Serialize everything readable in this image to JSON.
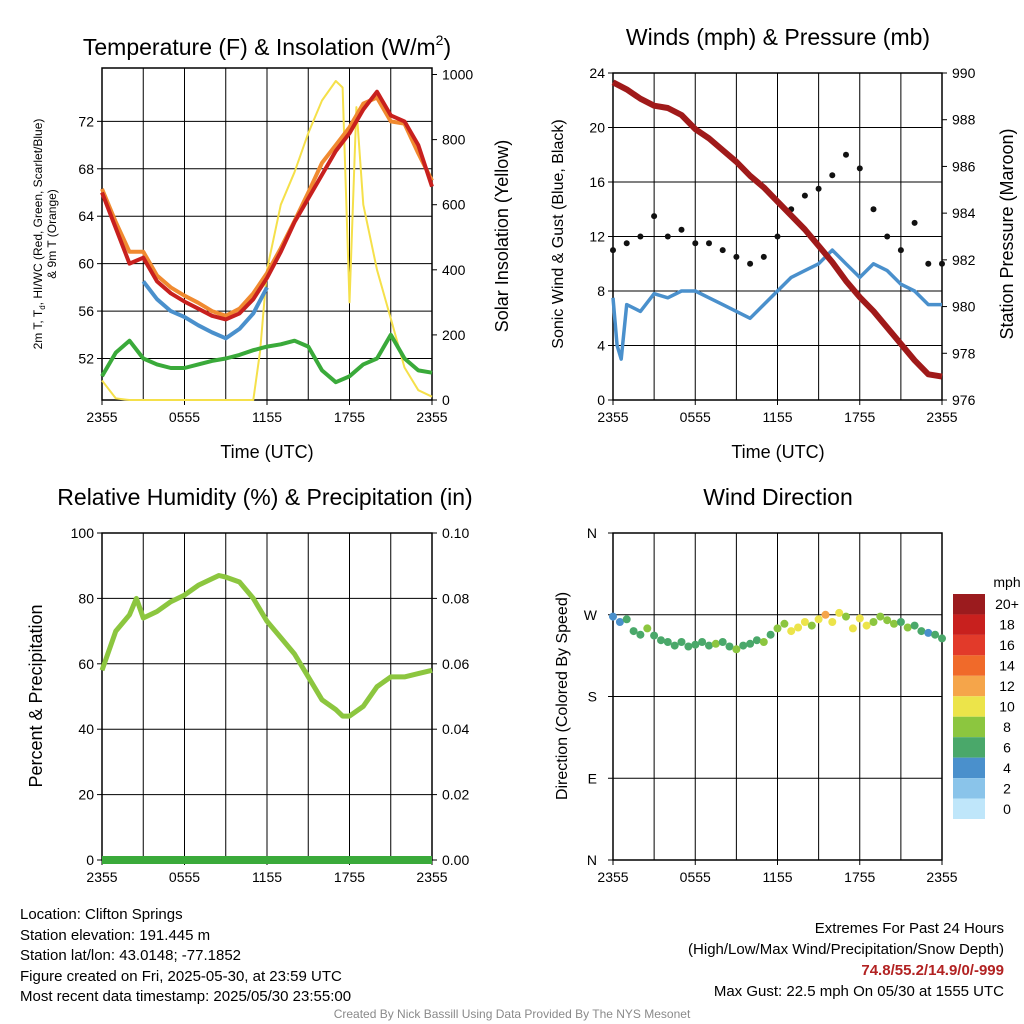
{
  "chart_data": [
    {
      "type": "line",
      "title_main": "Temperature (F) & Insolation (W/m",
      "title_sup": "2",
      "title_close": ")",
      "xlabel": "Time (UTC)",
      "ylabel_line1": "2m T, T",
      "ylabel_sub": "d",
      "ylabel_line1_rest": ", HI/WC (Red, Green, Scarlet/Blue)",
      "ylabel_line2": "& 9m T (Orange)",
      "y2label": "Solar Insolation (Yellow)",
      "ylim": [
        48.5,
        76.5
      ],
      "y2lim": [
        0,
        1020
      ],
      "yticks": [
        "52",
        "56",
        "60",
        "64",
        "68",
        "72"
      ],
      "y2ticks": [
        "0",
        "200",
        "400",
        "600",
        "800",
        "1000"
      ],
      "xticks": [
        "2355",
        "0555",
        "1155",
        "1755",
        "2355"
      ],
      "grid": true,
      "series": [
        {
          "color": "#c8201e",
          "axis": "left",
          "x": [
            0,
            1,
            2,
            3,
            4,
            5,
            6,
            7,
            8,
            9,
            10,
            11,
            12,
            13,
            14,
            15,
            16,
            17,
            18,
            19,
            20,
            21,
            22,
            23,
            24
          ],
          "y": [
            66,
            63,
            60,
            60.5,
            58.5,
            57.5,
            56.8,
            56.2,
            55.6,
            55.3,
            55.8,
            57,
            58.8,
            61,
            63.5,
            65.5,
            67.5,
            69.5,
            71,
            73,
            74.5,
            72.5,
            72,
            70,
            66.5
          ]
        },
        {
          "color": "#f08a30",
          "axis": "left",
          "x": [
            0,
            1,
            2,
            3,
            4,
            5,
            6,
            7,
            8,
            9,
            10,
            11,
            12,
            13,
            14,
            15,
            16,
            17,
            18,
            19,
            20,
            21,
            22,
            23,
            24
          ],
          "y": [
            66.3,
            63.5,
            61,
            61,
            59,
            58,
            57.3,
            56.7,
            56,
            55.6,
            56.2,
            57.5,
            59.2,
            61.3,
            63.6,
            66,
            68.5,
            70,
            71.5,
            73.5,
            74,
            72,
            71.8,
            69.3,
            67
          ]
        },
        {
          "color": "#4a90cc",
          "axis": "left",
          "x": [
            3,
            4,
            5,
            6,
            7,
            8,
            9,
            10,
            11,
            12
          ],
          "y": [
            58.5,
            57,
            56,
            55.5,
            54.8,
            54.2,
            53.7,
            54.5,
            55.8,
            58
          ]
        },
        {
          "color": "#3aaa3a",
          "axis": "left",
          "x": [
            0,
            1,
            2,
            3,
            4,
            5,
            6,
            7,
            8,
            9,
            10,
            11,
            12,
            13,
            14,
            15,
            16,
            17,
            18,
            19,
            20,
            21,
            22,
            23,
            24
          ],
          "y": [
            50.5,
            52.5,
            53.5,
            52,
            51.5,
            51.2,
            51.2,
            51.5,
            51.8,
            52,
            52.3,
            52.7,
            53,
            53.2,
            53.5,
            53,
            51,
            50,
            50.5,
            51.5,
            52,
            54,
            52,
            51,
            50.8
          ]
        },
        {
          "color": "#f5e04a",
          "axis": "right",
          "x": [
            0,
            1,
            2,
            3,
            4,
            5,
            6,
            7,
            8,
            9,
            10,
            11,
            11.5,
            12,
            13,
            14,
            15,
            16,
            17,
            17.5,
            18,
            18.5,
            19,
            20,
            21,
            22,
            23,
            24
          ],
          "y": [
            60,
            5,
            0,
            0,
            0,
            0,
            0,
            0,
            0,
            0,
            0,
            0,
            150,
            400,
            600,
            700,
            820,
            920,
            980,
            960,
            300,
            900,
            600,
            400,
            250,
            100,
            30,
            10
          ]
        }
      ]
    },
    {
      "type": "scatter",
      "title": "Winds (mph) & Pressure (mb)",
      "xlabel": "Time (UTC)",
      "ylabel": "Sonic Wind & Gust (Blue, Black)",
      "y2label": "Station Pressure (Maroon)",
      "ylim": [
        0,
        24
      ],
      "y2lim": [
        976,
        990
      ],
      "yticks": [
        "0",
        "4",
        "8",
        "12",
        "16",
        "20",
        "24"
      ],
      "y2ticks": [
        "976",
        "978",
        "980",
        "982",
        "984",
        "986",
        "988",
        "990"
      ],
      "xticks": [
        "2355",
        "0555",
        "1155",
        "1755",
        "2355"
      ],
      "grid": true,
      "series": [
        {
          "color": "#4a90cc",
          "axis": "left",
          "x": [
            0,
            0.3,
            0.6,
            1,
            2,
            3,
            4,
            5,
            6,
            7,
            8,
            9,
            10,
            11,
            12,
            13,
            14,
            15,
            16,
            17,
            18,
            19,
            20,
            21,
            22,
            23,
            24
          ],
          "y": [
            7.5,
            4,
            3,
            7,
            6.5,
            7.8,
            7.5,
            8,
            8,
            7.5,
            7,
            6.5,
            6,
            7,
            8,
            9,
            9.5,
            10,
            11,
            10,
            9,
            10,
            9.5,
            8.5,
            8,
            7,
            7
          ]
        },
        {
          "color": "#111111",
          "axis": "left",
          "x": [
            0,
            1,
            2,
            3,
            4,
            5,
            6,
            7,
            8,
            9,
            10,
            11,
            12,
            13,
            14,
            15,
            16,
            17,
            18,
            19,
            20,
            21,
            22,
            23,
            24
          ],
          "y": [
            11,
            11.5,
            12,
            13.5,
            12,
            12.5,
            11.5,
            11.5,
            11,
            10.5,
            10,
            10.5,
            12,
            14,
            15,
            15.5,
            16.5,
            18,
            17,
            14,
            12,
            11,
            13,
            10,
            10
          ]
        },
        {
          "color": "#a01a1a",
          "axis": "right",
          "x": [
            0,
            1,
            2,
            3,
            4,
            5,
            6,
            7,
            8,
            9,
            10,
            11,
            12,
            13,
            14,
            15,
            16,
            17,
            18,
            19,
            20,
            21,
            22,
            23,
            24
          ],
          "y": [
            989.6,
            989.3,
            988.9,
            988.6,
            988.5,
            988.2,
            987.6,
            987.2,
            986.7,
            986.2,
            985.6,
            985.1,
            984.5,
            983.9,
            983.3,
            982.6,
            981.9,
            981.1,
            980.4,
            979.8,
            979.1,
            978.4,
            977.7,
            977.1,
            977
          ]
        }
      ]
    },
    {
      "type": "line",
      "title": "Relative Humidity (%) & Precipitation (in)",
      "ylabel": "Percent & Precipitation",
      "ylim": [
        0,
        100
      ],
      "y2lim": [
        0,
        0.1
      ],
      "yticks": [
        "0",
        "20",
        "40",
        "60",
        "80",
        "100"
      ],
      "y2ticks": [
        "0.00",
        "0.02",
        "0.04",
        "0.06",
        "0.08",
        "0.10"
      ],
      "xticks": [
        "2355",
        "0555",
        "1155",
        "1755",
        "2355"
      ],
      "grid": true,
      "series": [
        {
          "color": "#8cc63f",
          "axis": "left",
          "x": [
            0,
            0.5,
            1,
            2,
            2.5,
            3,
            4,
            5,
            6,
            7,
            8,
            8.5,
            9,
            10,
            11,
            12,
            13,
            14,
            15,
            16,
            17,
            17.5,
            18,
            19,
            20,
            21,
            22,
            23,
            24
          ],
          "y": [
            58,
            64,
            70,
            75,
            80,
            74,
            76,
            79,
            81,
            84,
            86,
            87,
            86.5,
            85,
            80,
            73,
            68,
            63,
            56,
            49,
            46,
            44,
            44,
            47,
            53,
            56,
            56,
            57,
            58
          ]
        },
        {
          "color": "#3aaa3a",
          "axis": "right",
          "x": [
            0,
            24
          ],
          "y": [
            0,
            0
          ]
        }
      ]
    },
    {
      "type": "scatter",
      "title": "Wind Direction",
      "ylabel": "Direction (Colored By Speed)",
      "yticks": [
        "N",
        "E",
        "S",
        "W",
        "N"
      ],
      "ylim": [
        0,
        360
      ],
      "xticks": [
        "2355",
        "0555",
        "1155",
        "1755",
        "2355"
      ],
      "grid": true,
      "legend_title": "mph",
      "legend_labels": [
        "20+",
        "18",
        "16",
        "14",
        "12",
        "10",
        "8",
        "6",
        "4",
        "2",
        "0"
      ],
      "legend_colors": [
        "#9b1b1e",
        "#c8201e",
        "#e23a2a",
        "#f06a2a",
        "#f5a54a",
        "#ece44a",
        "#8cc63f",
        "#4aa86a",
        "#4a90cc",
        "#8ac4ea",
        "#bfe6fa"
      ],
      "points": [
        {
          "x": 0,
          "y": 268,
          "s": 5
        },
        {
          "x": 0.5,
          "y": 262,
          "s": 4
        },
        {
          "x": 1,
          "y": 265,
          "s": 6
        },
        {
          "x": 1.5,
          "y": 252,
          "s": 6
        },
        {
          "x": 2,
          "y": 248,
          "s": 7
        },
        {
          "x": 2.5,
          "y": 255,
          "s": 8
        },
        {
          "x": 3,
          "y": 247,
          "s": 7
        },
        {
          "x": 3.5,
          "y": 242,
          "s": 6
        },
        {
          "x": 4,
          "y": 240,
          "s": 7
        },
        {
          "x": 4.5,
          "y": 236,
          "s": 6
        },
        {
          "x": 5,
          "y": 240,
          "s": 7
        },
        {
          "x": 5.5,
          "y": 235,
          "s": 6
        },
        {
          "x": 6,
          "y": 237,
          "s": 7
        },
        {
          "x": 6.5,
          "y": 240,
          "s": 6
        },
        {
          "x": 7,
          "y": 236,
          "s": 7
        },
        {
          "x": 7.5,
          "y": 238,
          "s": 8
        },
        {
          "x": 8,
          "y": 240,
          "s": 6
        },
        {
          "x": 8.5,
          "y": 235,
          "s": 7
        },
        {
          "x": 9,
          "y": 232,
          "s": 8
        },
        {
          "x": 9.5,
          "y": 236,
          "s": 7
        },
        {
          "x": 10,
          "y": 238,
          "s": 6
        },
        {
          "x": 10.5,
          "y": 242,
          "s": 7
        },
        {
          "x": 11,
          "y": 240,
          "s": 8
        },
        {
          "x": 11.5,
          "y": 248,
          "s": 7
        },
        {
          "x": 12,
          "y": 255,
          "s": 8
        },
        {
          "x": 12.5,
          "y": 260,
          "s": 9
        },
        {
          "x": 13,
          "y": 252,
          "s": 10
        },
        {
          "x": 13.5,
          "y": 256,
          "s": 11
        },
        {
          "x": 14,
          "y": 262,
          "s": 10
        },
        {
          "x": 14.5,
          "y": 258,
          "s": 9
        },
        {
          "x": 15,
          "y": 265,
          "s": 10
        },
        {
          "x": 15.5,
          "y": 270,
          "s": 12
        },
        {
          "x": 16,
          "y": 262,
          "s": 11
        },
        {
          "x": 16.5,
          "y": 272,
          "s": 10
        },
        {
          "x": 17,
          "y": 268,
          "s": 9
        },
        {
          "x": 17.5,
          "y": 255,
          "s": 10
        },
        {
          "x": 18,
          "y": 266,
          "s": 11
        },
        {
          "x": 18.5,
          "y": 258,
          "s": 10
        },
        {
          "x": 19,
          "y": 262,
          "s": 9
        },
        {
          "x": 19.5,
          "y": 268,
          "s": 8
        },
        {
          "x": 20,
          "y": 264,
          "s": 9
        },
        {
          "x": 20.5,
          "y": 260,
          "s": 8
        },
        {
          "x": 21,
          "y": 262,
          "s": 7
        },
        {
          "x": 21.5,
          "y": 256,
          "s": 8
        },
        {
          "x": 22,
          "y": 258,
          "s": 7
        },
        {
          "x": 22.5,
          "y": 252,
          "s": 6
        },
        {
          "x": 23,
          "y": 250,
          "s": 5
        },
        {
          "x": 23.5,
          "y": 248,
          "s": 6
        },
        {
          "x": 24,
          "y": 244,
          "s": 7
        }
      ]
    }
  ],
  "info": {
    "location": "Location: Clifton Springs",
    "elevation": "Station elevation: 191.445 m",
    "latlon": "Station lat/lon: 43.0148; -77.1852",
    "created": "Figure created on Fri, 2025-05-30, at 23:59 UTC",
    "recent": "Most recent data timestamp: 2025/05/30 23:55:00"
  },
  "extremes": {
    "title": "Extremes For Past 24 Hours",
    "subtitle": "(High/Low/Max Wind/Precipitation/Snow Depth)",
    "values": "74.8/55.2/14.9/0/-999",
    "gust": "Max Gust: 22.5 mph On 05/30 at 1555 UTC"
  },
  "credit": "Created By Nick Bassill Using Data Provided By The NYS Mesonet"
}
